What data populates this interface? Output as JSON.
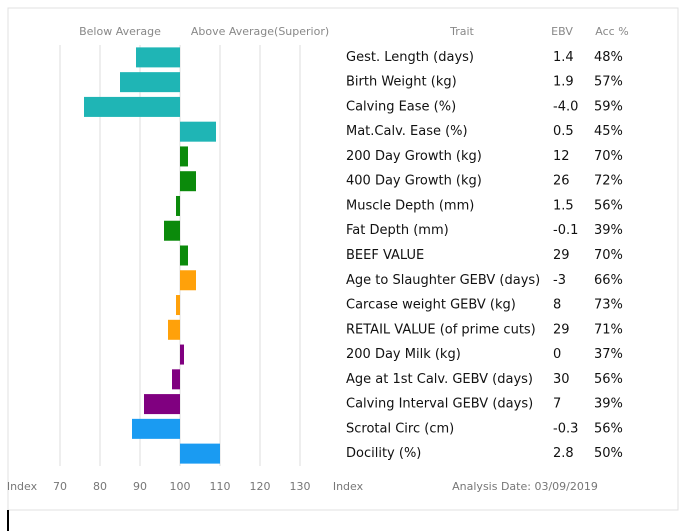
{
  "chart_data": {
    "type": "bar",
    "orientation": "horizontal",
    "left_label": "Below Average",
    "right_label": "Above Average(Superior)",
    "x_label": "Index",
    "table_label": "Index",
    "analysis_date": "Analysis Date: 03/09/2019",
    "columns": [
      "Trait",
      "EBV",
      "Acc %"
    ],
    "categories": [
      "Gest. Length (days)",
      "Birth Weight (kg)",
      "Calving Ease (%)",
      "Mat.Calv. Ease (%)",
      "200 Day Growth (kg)",
      "400 Day Growth (kg)",
      "Muscle Depth (mm)",
      "Fat Depth (mm)",
      "BEEF VALUE",
      "Age to Slaughter GEBV (days)",
      "Carcase weight GEBV (kg)",
      "RETAIL VALUE (of prime cuts)",
      "200 Day Milk (kg)",
      "Age at 1st Calv. GEBV (days)",
      "Calving Interval GEBV (days)",
      "Scrotal Circ (cm)",
      "Docility (%)"
    ],
    "ebv": [
      "1.4",
      "1.9",
      "-4.0",
      "0.5",
      "12",
      "26",
      "1.5",
      "-0.1",
      "29",
      "-3",
      "8",
      "29",
      "0",
      "30",
      "7",
      "-0.3",
      "2.8"
    ],
    "acc": [
      "48%",
      "57%",
      "59%",
      "45%",
      "70%",
      "72%",
      "56%",
      "39%",
      "70%",
      "66%",
      "73%",
      "71%",
      "37%",
      "56%",
      "39%",
      "56%",
      "50%"
    ],
    "values": [
      89,
      85,
      76,
      109,
      102,
      104,
      99,
      96,
      102,
      104,
      99,
      97,
      101,
      98,
      91,
      88,
      110
    ],
    "colors": [
      "#1fb5b5",
      "#1fb5b5",
      "#1fb5b5",
      "#1fb5b5",
      "#0b8a0b",
      "#0b8a0b",
      "#0b8a0b",
      "#0b8a0b",
      "#0b8a0b",
      "#ffa10a",
      "#ffa10a",
      "#ffa10a",
      "#800080",
      "#800080",
      "#800080",
      "#1a9bf2",
      "#1a9bf2"
    ],
    "baseline": 100,
    "xlim": [
      60,
      140
    ],
    "xticks": [
      70,
      80,
      90,
      100,
      110,
      120,
      130
    ],
    "grid": true
  }
}
